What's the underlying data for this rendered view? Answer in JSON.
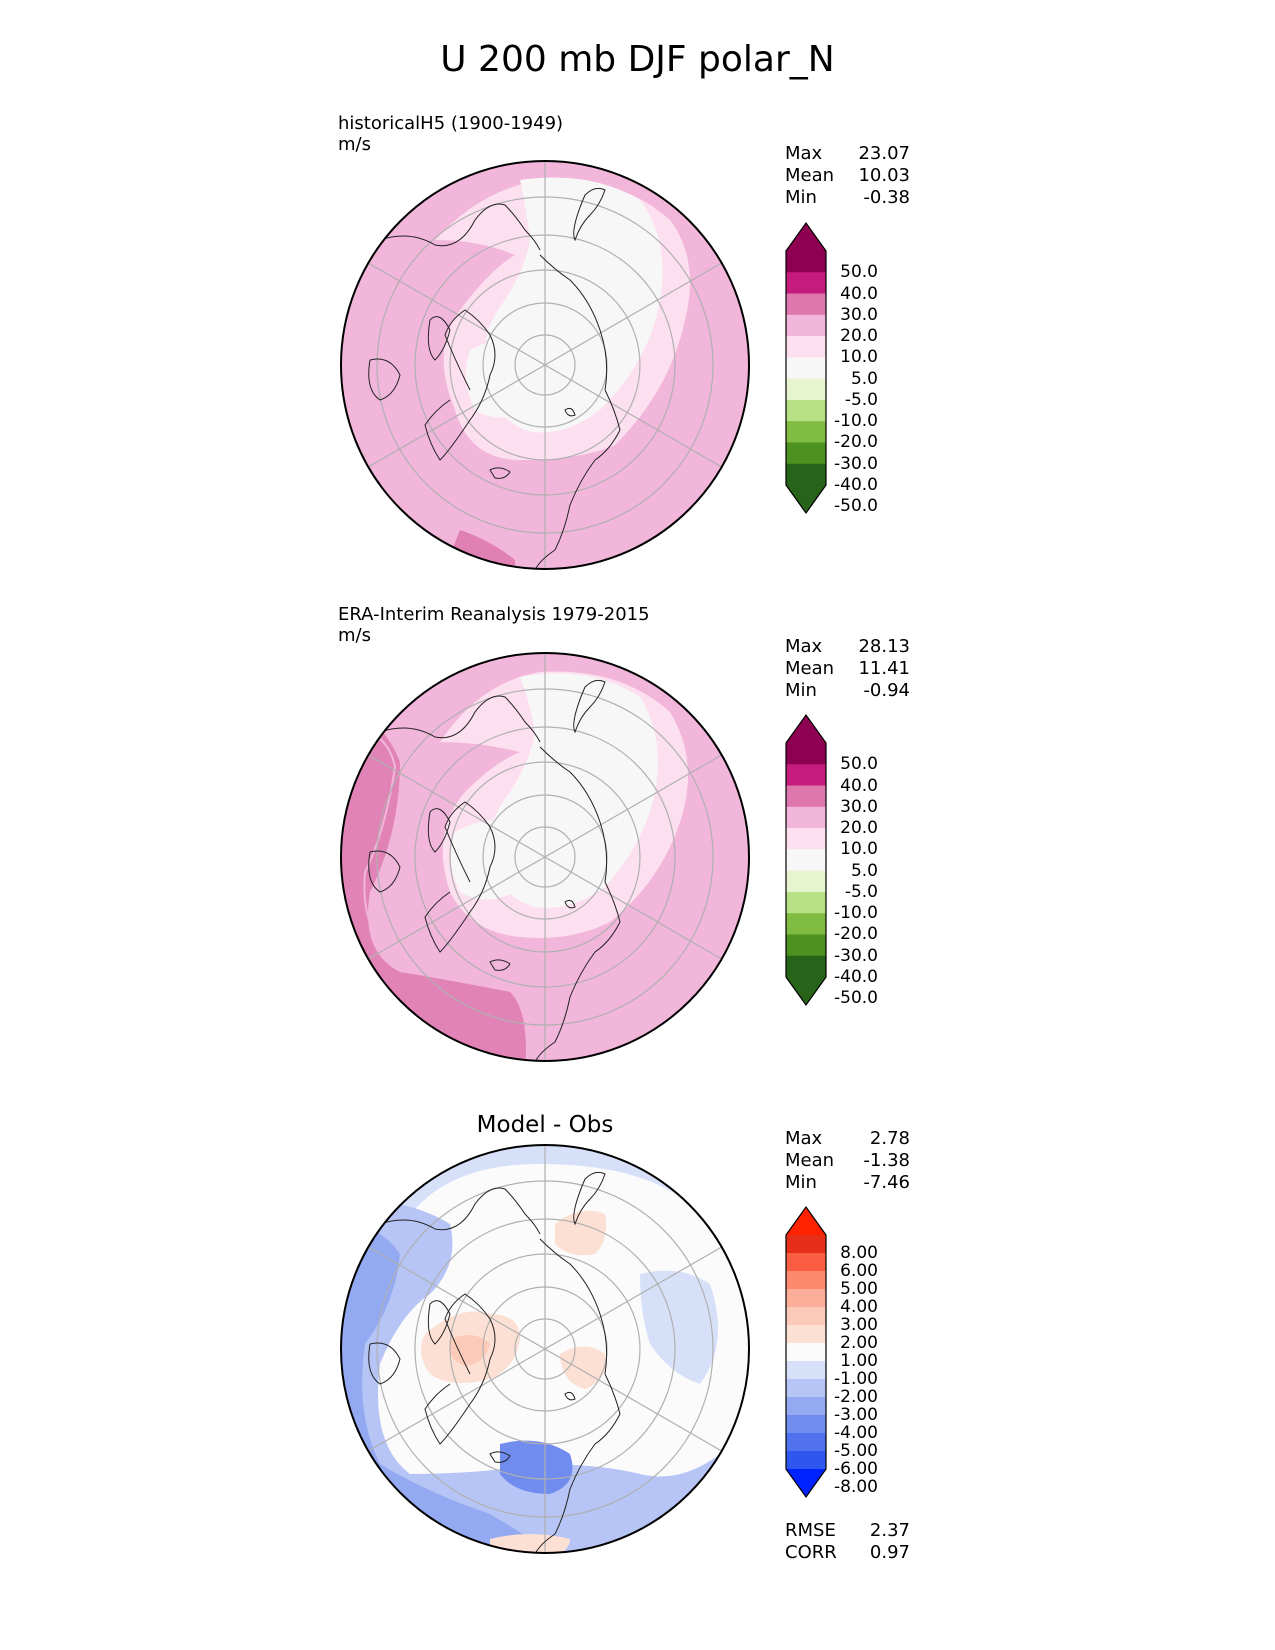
{
  "title": "U 200 mb DJF polar_N",
  "chart_data": [
    {
      "type": "heatmap",
      "panel": "model",
      "label": "historicalH5 (1900-1949)",
      "units": "m/s",
      "stats": [
        {
          "name": "Max",
          "value": "23.07"
        },
        {
          "name": "Mean",
          "value": "10.03"
        },
        {
          "name": "Min",
          "value": "-0.38"
        }
      ],
      "colorbar": {
        "extend": "both",
        "tick_labels": [
          "50.0",
          "40.0",
          "30.0",
          "20.0",
          "10.0",
          "5.0",
          "-5.0",
          "-10.0",
          "-20.0",
          "-30.0",
          "-40.0",
          "-50.0"
        ],
        "colors": [
          "#8e0152",
          "#c51b7d",
          "#de77ae",
          "#f1b6da",
          "#fde0ef",
          "#f7f7f7",
          "#e6f5d0",
          "#b8e186",
          "#7fbc41",
          "#4d9221",
          "#276419"
        ]
      }
    },
    {
      "type": "heatmap",
      "panel": "reference",
      "label": "ERA-Interim Reanalysis 1979-2015",
      "units": "m/s",
      "stats": [
        {
          "name": "Max",
          "value": "28.13"
        },
        {
          "name": "Mean",
          "value": "11.41"
        },
        {
          "name": "Min",
          "value": "-0.94"
        }
      ],
      "colorbar": {
        "extend": "both",
        "tick_labels": [
          "50.0",
          "40.0",
          "30.0",
          "20.0",
          "10.0",
          "5.0",
          "-5.0",
          "-10.0",
          "-20.0",
          "-30.0",
          "-40.0",
          "-50.0"
        ],
        "colors": [
          "#8e0152",
          "#c51b7d",
          "#de77ae",
          "#f1b6da",
          "#fde0ef",
          "#f7f7f7",
          "#e6f5d0",
          "#b8e186",
          "#7fbc41",
          "#4d9221",
          "#276419"
        ]
      }
    },
    {
      "type": "heatmap",
      "panel": "difference",
      "label": "Model - Obs",
      "stats": [
        {
          "name": "Max",
          "value": "2.78"
        },
        {
          "name": "Mean",
          "value": "-1.38"
        },
        {
          "name": "Min",
          "value": "-7.46"
        }
      ],
      "metrics": [
        {
          "name": "RMSE",
          "value": "2.37"
        },
        {
          "name": "CORR",
          "value": "0.97"
        }
      ],
      "colorbar": {
        "extend": "both",
        "tick_labels": [
          "8.00",
          "6.00",
          "5.00",
          "4.00",
          "3.00",
          "2.00",
          "1.00",
          "-1.00",
          "-2.00",
          "-3.00",
          "-4.00",
          "-5.00",
          "-6.00",
          "-8.00"
        ],
        "colors": [
          "#e52f19",
          "#fb5d43",
          "#fd8a6f",
          "#fdae99",
          "#fccab8",
          "#fde0d4",
          "#fbfbfb",
          "#d7e0f9",
          "#b6c5f5",
          "#93a9f2",
          "#708cef",
          "#5072ef",
          "#2f57ef"
        ]
      }
    }
  ],
  "colors": {
    "mod_over": "#8e0152",
    "mod_under": "#276419",
    "diff_over": "#ff2200",
    "diff_under": "#0022ff"
  }
}
